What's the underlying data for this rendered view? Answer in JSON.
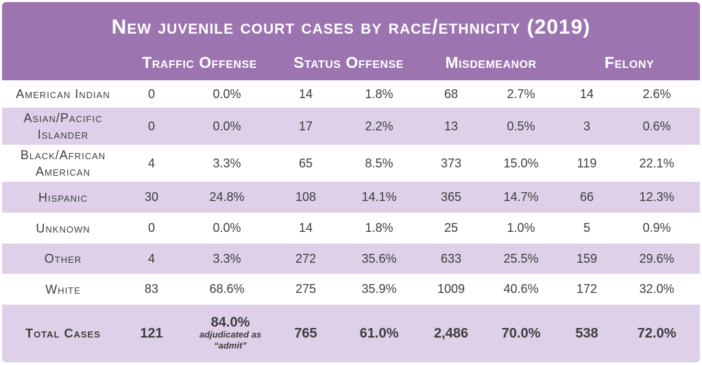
{
  "title": "New juvenile court cases by race/ethnicity (2019)",
  "columns": [
    "Traffic Offense",
    "Status Offense",
    "Misdemeanor",
    "Felony"
  ],
  "rows": [
    {
      "label": "American Indian",
      "values": [
        "0",
        "0.0%",
        "14",
        "1.8%",
        "68",
        "2.7%",
        "14",
        "2.6%"
      ]
    },
    {
      "label_lines": [
        "Asian/Pacific",
        "Islander"
      ],
      "values": [
        "0",
        "0.0%",
        "17",
        "2.2%",
        "13",
        "0.5%",
        "3",
        "0.6%"
      ]
    },
    {
      "label_lines": [
        "Black/African",
        "American"
      ],
      "values": [
        "4",
        "3.3%",
        "65",
        "8.5%",
        "373",
        "15.0%",
        "119",
        "22.1%"
      ]
    },
    {
      "label": "Hispanic",
      "values": [
        "30",
        "24.8%",
        "108",
        "14.1%",
        "365",
        "14.7%",
        "66",
        "12.3%"
      ]
    },
    {
      "label": "Unknown",
      "values": [
        "0",
        "0.0%",
        "14",
        "1.8%",
        "25",
        "1.0%",
        "5",
        "0.9%"
      ]
    },
    {
      "label": "Other",
      "values": [
        "4",
        "3.3%",
        "272",
        "35.6%",
        "633",
        "25.5%",
        "159",
        "29.6%"
      ]
    },
    {
      "label": "White",
      "values": [
        "83",
        "68.6%",
        "275",
        "35.9%",
        "1009",
        "40.6%",
        "172",
        "32.0%"
      ]
    }
  ],
  "total": {
    "label": "Total Cases",
    "values": [
      "121",
      "84.0%",
      "765",
      "61.0%",
      "2,486",
      "70.0%",
      "538",
      "72.0%"
    ],
    "note_lines": [
      "adjudicated as",
      "“admit”"
    ]
  }
}
